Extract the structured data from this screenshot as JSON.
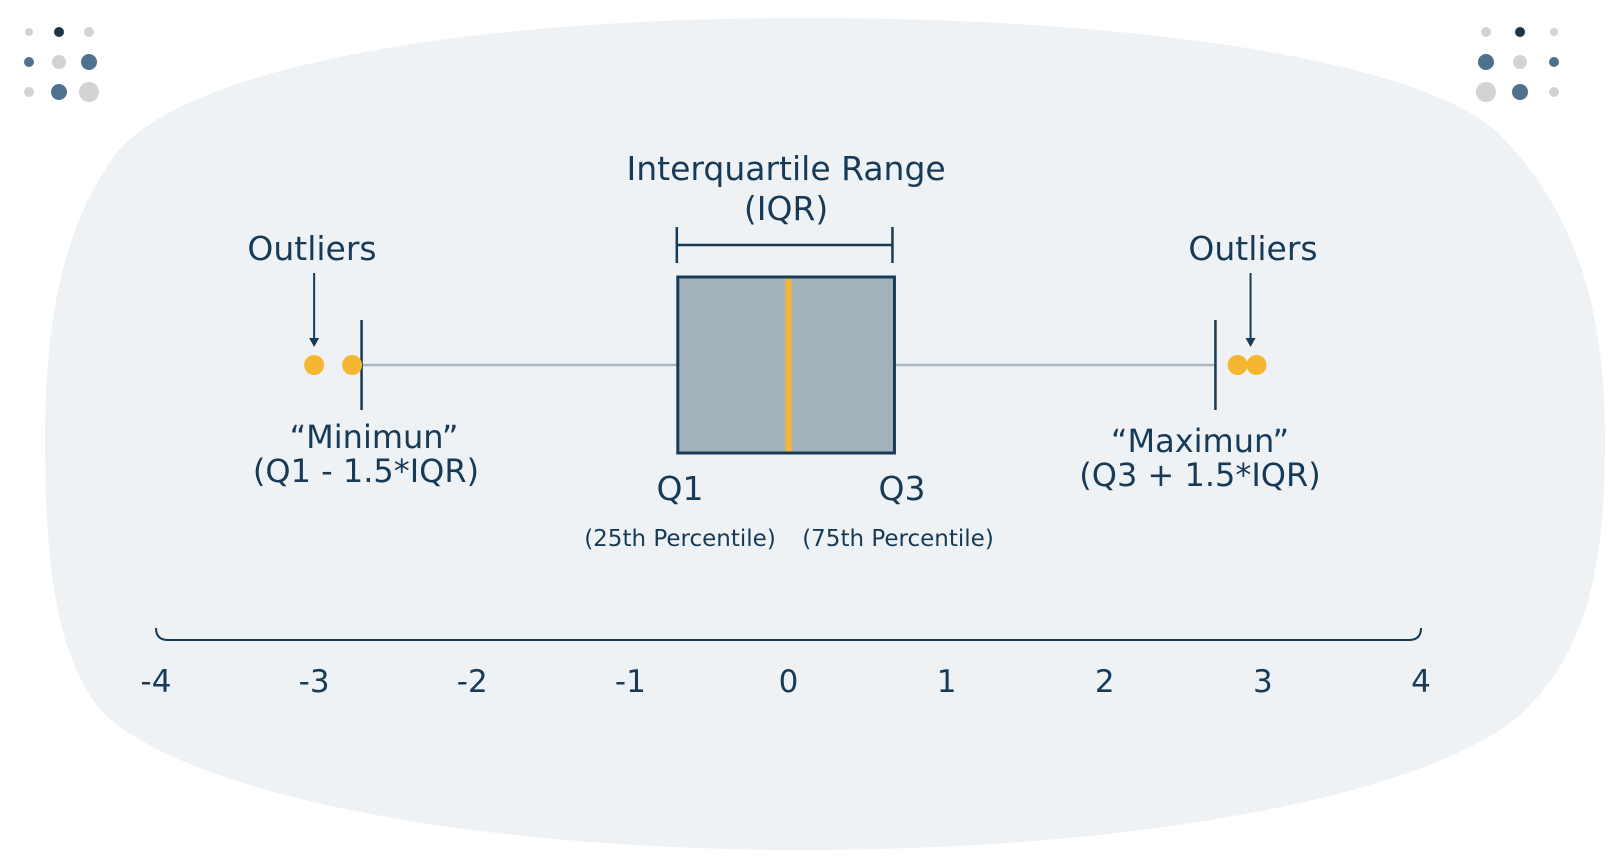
{
  "chart_data": {
    "type": "boxplot",
    "box": {
      "q1": -0.7,
      "median": 0,
      "q3": 0.67,
      "whisker_low": -2.7,
      "whisker_high": 2.7
    },
    "outliers": [
      -3.0,
      -2.76,
      2.84,
      2.96
    ],
    "xlim": [
      -4,
      4
    ],
    "ticks": [
      -4,
      -3,
      -2,
      -1,
      0,
      1,
      2,
      3,
      4
    ],
    "tick_labels": [
      "-4",
      "-3",
      "-2",
      "-1",
      "0",
      "1",
      "2",
      "3",
      "4"
    ]
  },
  "labels": {
    "iqr_line1": "Interquartile Range",
    "iqr_line2": "(IQR)",
    "outliers_left": "Outliers",
    "outliers_right": "Outliers",
    "minimum_line1": "“Minimun”",
    "minimum_line2": "(Q1 - 1.5*IQR)",
    "maximum_line1": "“Maximun”",
    "maximum_line2": "(Q3 + 1.5*IQR)",
    "q1": "Q1",
    "q1_sub": "(25th Percentile)",
    "q3": "Q3",
    "q3_sub": "(75th Percentile)"
  },
  "colors": {
    "background_blob": "#eff2f5",
    "ink": "#173a57",
    "box_fill": "#a3b1bb",
    "whisker": "#a9b5bf",
    "median": "#f5b731",
    "outlier": "#f5b731",
    "dot_dark": "#1f3347",
    "dot_blue": "#4e7190",
    "dot_grey": "#d3d3d3"
  }
}
